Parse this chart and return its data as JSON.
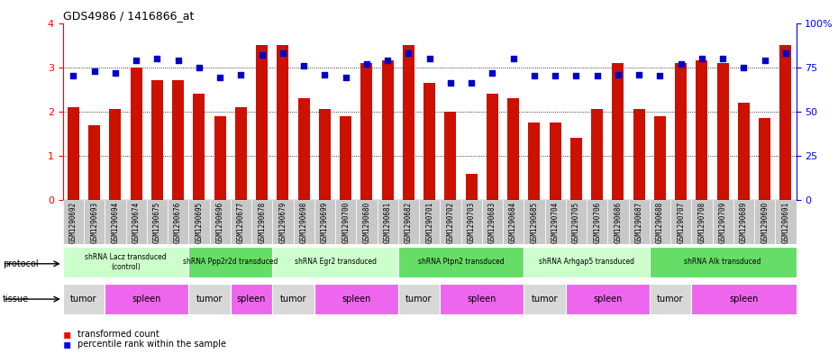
{
  "title": "GDS4986 / 1416866_at",
  "samples": [
    "GSM1290692",
    "GSM1290693",
    "GSM1290694",
    "GSM1290674",
    "GSM1290675",
    "GSM1290676",
    "GSM1290695",
    "GSM1290696",
    "GSM1290677",
    "GSM1290678",
    "GSM1290679",
    "GSM1290698",
    "GSM1290699",
    "GSM1290700",
    "GSM1290680",
    "GSM1290681",
    "GSM1290682",
    "GSM1290701",
    "GSM1290702",
    "GSM1290703",
    "GSM1290683",
    "GSM1290684",
    "GSM1290685",
    "GSM1290704",
    "GSM1290705",
    "GSM1290706",
    "GSM1290686",
    "GSM1290687",
    "GSM1290688",
    "GSM1290707",
    "GSM1290708",
    "GSM1290709",
    "GSM1290689",
    "GSM1290690",
    "GSM1290691"
  ],
  "bar_values": [
    2.1,
    1.7,
    2.05,
    3.0,
    2.7,
    2.7,
    2.4,
    1.9,
    2.1,
    3.5,
    3.5,
    2.3,
    2.05,
    1.9,
    3.1,
    3.15,
    3.5,
    2.65,
    2.0,
    0.6,
    2.4,
    2.3,
    1.75,
    1.75,
    1.4,
    2.05,
    3.1,
    2.05,
    1.9,
    3.1,
    3.15,
    3.1,
    2.2,
    1.85,
    3.5
  ],
  "dot_values": [
    70,
    73,
    72,
    79,
    80,
    79,
    75,
    69,
    71,
    82,
    83,
    76,
    71,
    69,
    77,
    79,
    83,
    80,
    66,
    66,
    72,
    80,
    70,
    70,
    70,
    70,
    71,
    71,
    70,
    77,
    80,
    80,
    75,
    79,
    83
  ],
  "protocols": [
    {
      "label": "shRNA Lacz transduced\n(control)",
      "start": 0,
      "end": 6,
      "color": "#ccffcc"
    },
    {
      "label": "shRNA Ppp2r2d transduced",
      "start": 6,
      "end": 10,
      "color": "#66dd66"
    },
    {
      "label": "shRNA Egr2 transduced",
      "start": 10,
      "end": 16,
      "color": "#ccffcc"
    },
    {
      "label": "shRNA Ptpn2 transduced",
      "start": 16,
      "end": 22,
      "color": "#66dd66"
    },
    {
      "label": "shRNA Arhgap5 transduced",
      "start": 22,
      "end": 28,
      "color": "#ccffcc"
    },
    {
      "label": "shRNA Alk transduced",
      "start": 28,
      "end": 35,
      "color": "#66dd66"
    }
  ],
  "tissues": [
    {
      "label": "tumor",
      "start": 0,
      "end": 2,
      "color": "#d8d8d8"
    },
    {
      "label": "spleen",
      "start": 2,
      "end": 6,
      "color": "#ee66ee"
    },
    {
      "label": "tumor",
      "start": 6,
      "end": 8,
      "color": "#d8d8d8"
    },
    {
      "label": "spleen",
      "start": 8,
      "end": 10,
      "color": "#ee66ee"
    },
    {
      "label": "tumor",
      "start": 10,
      "end": 12,
      "color": "#d8d8d8"
    },
    {
      "label": "spleen",
      "start": 12,
      "end": 16,
      "color": "#ee66ee"
    },
    {
      "label": "tumor",
      "start": 16,
      "end": 18,
      "color": "#d8d8d8"
    },
    {
      "label": "spleen",
      "start": 18,
      "end": 22,
      "color": "#ee66ee"
    },
    {
      "label": "tumor",
      "start": 22,
      "end": 24,
      "color": "#d8d8d8"
    },
    {
      "label": "spleen",
      "start": 24,
      "end": 28,
      "color": "#ee66ee"
    },
    {
      "label": "tumor",
      "start": 28,
      "end": 30,
      "color": "#d8d8d8"
    },
    {
      "label": "spleen",
      "start": 30,
      "end": 35,
      "color": "#ee66ee"
    }
  ],
  "bar_color": "#cc1100",
  "dot_color": "#0000cc",
  "ylim_left": [
    0,
    4
  ],
  "ylim_right": [
    0,
    100
  ],
  "yticks_left": [
    0,
    1,
    2,
    3,
    4
  ],
  "yticks_right": [
    0,
    25,
    50,
    75,
    100
  ],
  "bar_width": 0.55,
  "tick_bg_color": "#c8c8c8"
}
